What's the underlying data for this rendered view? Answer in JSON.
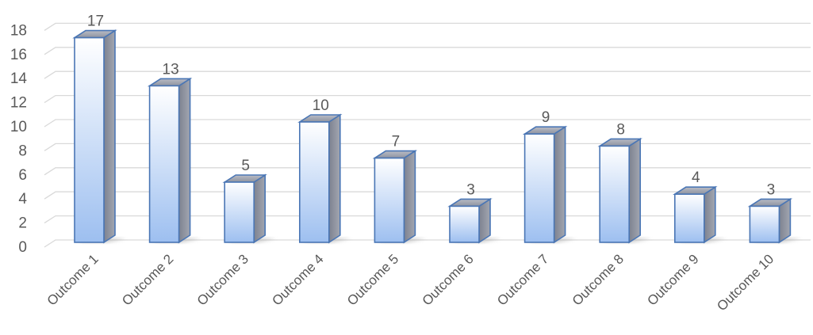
{
  "chart_data": {
    "type": "bar",
    "title": "",
    "xlabel": "",
    "ylabel": "",
    "categories": [
      "Outcome 1",
      "Outcome 2",
      "Outcome 3",
      "Outcome 4",
      "Outcome 5",
      "Outcome 6",
      "Outcome 7",
      "Outcome 8",
      "Outcome 9",
      "Outcome 10"
    ],
    "values": [
      17,
      13,
      5,
      10,
      7,
      3,
      9,
      8,
      4,
      3
    ],
    "data_labels": [
      "17",
      "13",
      "5",
      "10",
      "7",
      "3",
      "9",
      "8",
      "4",
      "3"
    ],
    "y_ticks": [
      "0",
      "2",
      "4",
      "6",
      "8",
      "10",
      "12",
      "14",
      "16",
      "18"
    ],
    "ylim": [
      0,
      18
    ],
    "grid": true,
    "legend": "none",
    "style": "3d-column",
    "colors": {
      "bar_top": "#ffffff",
      "bar_bottom": "#9dbff0",
      "bar_side": "#8a8f9c",
      "bar_outline": "#4a76b5",
      "gridline": "#d9d9d9",
      "text": "#595959"
    }
  }
}
